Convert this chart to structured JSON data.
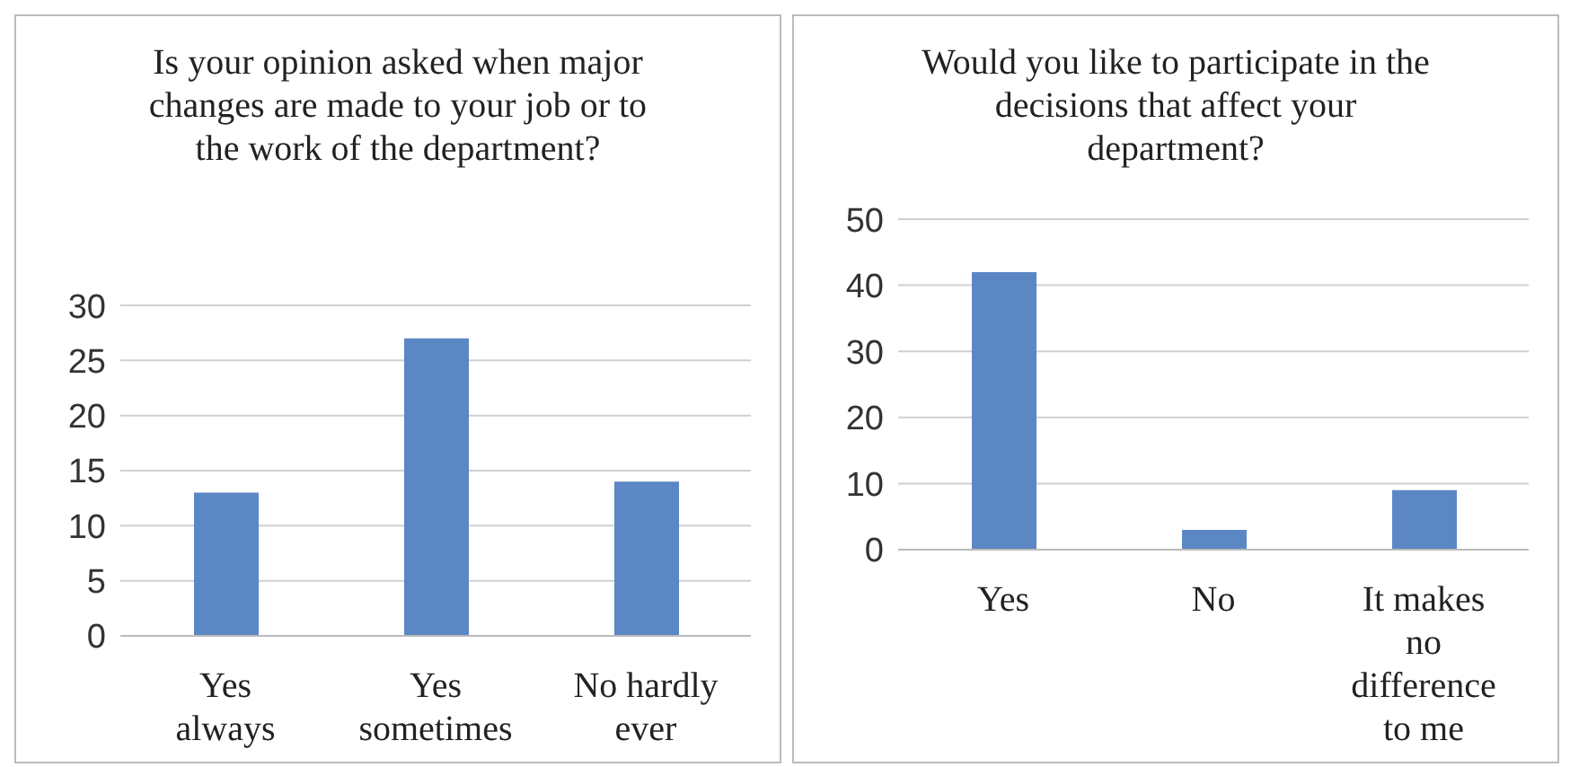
{
  "chart_data": [
    {
      "type": "bar",
      "title": "Is your opinion asked when major changes are made to your job or to the work of the department?",
      "categories": [
        "Yes always",
        "Yes sometimes",
        "No hardly ever"
      ],
      "values": [
        13,
        27,
        14
      ],
      "color": "#5b87c5",
      "ylim": [
        0,
        30
      ],
      "yticks": [
        0,
        5,
        10,
        15,
        20,
        25,
        30
      ],
      "grid": "y"
    },
    {
      "type": "bar",
      "title": "Would you like to participate in the decisions that affect your department?",
      "categories": [
        "Yes",
        "No",
        "It makes no difference to me"
      ],
      "values": [
        42,
        3,
        9
      ],
      "color": "#5b87c5",
      "ylim": [
        0,
        50
      ],
      "yticks": [
        0,
        10,
        20,
        30,
        40,
        50
      ],
      "grid": "y"
    }
  ]
}
